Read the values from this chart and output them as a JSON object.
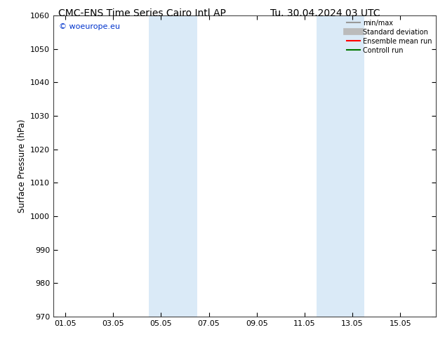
{
  "title_left": "CMC-ENS Time Series Cairo Intl AP",
  "title_right": "Tu. 30.04.2024 03 UTC",
  "ylabel": "Surface Pressure (hPa)",
  "ylim": [
    970,
    1060
  ],
  "yticks": [
    970,
    980,
    990,
    1000,
    1010,
    1020,
    1030,
    1040,
    1050,
    1060
  ],
  "xlim_start": -0.5,
  "xlim_end": 15.5,
  "xtick_positions": [
    0,
    2,
    4,
    6,
    8,
    10,
    12,
    14
  ],
  "xtick_labels": [
    "01.05",
    "03.05",
    "05.05",
    "07.05",
    "09.05",
    "11.05",
    "13.05",
    "15.05"
  ],
  "shaded_bands": [
    {
      "x_start": 3.5,
      "x_end": 4.5,
      "x_mid": 4.0
    },
    {
      "x_start": 4.5,
      "x_end": 5.5,
      "x_mid": 5.0
    },
    {
      "x_start": 10.5,
      "x_end": 11.5,
      "x_mid": 11.0
    },
    {
      "x_start": 11.5,
      "x_end": 12.5,
      "x_mid": 12.0
    }
  ],
  "shade_color": "#daeaf7",
  "watermark_text": "© woeurope.eu",
  "watermark_color": "#0033cc",
  "legend_entries": [
    {
      "label": "min/max",
      "color": "#999999",
      "lw": 1.5
    },
    {
      "label": "Standard deviation",
      "color": "#bbbbbb",
      "lw": 7
    },
    {
      "label": "Ensemble mean run",
      "color": "#ff0000",
      "lw": 1.5
    },
    {
      "label": "Controll run",
      "color": "#007700",
      "lw": 1.5
    }
  ],
  "background_color": "#ffffff",
  "title_fontsize": 10,
  "axis_label_fontsize": 8.5,
  "tick_fontsize": 8,
  "watermark_fontsize": 8
}
